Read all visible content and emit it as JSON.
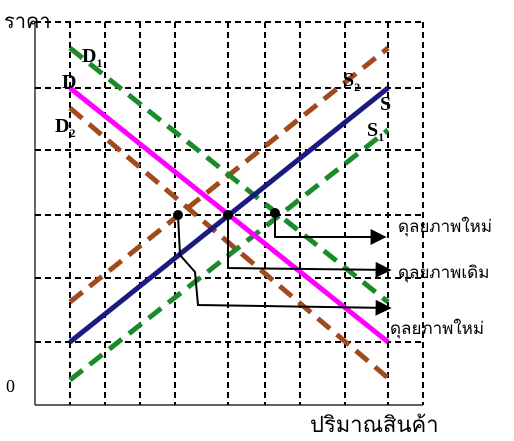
{
  "axes": {
    "y_label": "ราคา",
    "x_label": "ปริมาณสินค้า",
    "origin_label": "0"
  },
  "curves": {
    "D": {
      "label": "D",
      "color": "#ff00ff",
      "style": "solid"
    },
    "D1": {
      "label": "D",
      "subscript": "1",
      "color": "#1a8a2a",
      "style": "dashed"
    },
    "D2": {
      "label": "D",
      "subscript": "2",
      "color": "#a04a1e",
      "style": "dashed"
    },
    "S": {
      "label": "S",
      "color": "#1a1a80",
      "style": "solid"
    },
    "S1": {
      "label": "S",
      "subscript": "1",
      "color": "#1a8a2a",
      "style": "dashed"
    },
    "S2": {
      "label": "S",
      "subscript": "2",
      "color": "#a04a1e",
      "style": "dashed"
    }
  },
  "equilibria": {
    "new_upper": "ดุลยภาพใหม่",
    "original": "ดุลยภาพเดิม",
    "new_lower": "ดุลยภาพใหม่"
  },
  "colors": {
    "grid": "#000000",
    "point": "#000000",
    "arrow": "#000000"
  }
}
